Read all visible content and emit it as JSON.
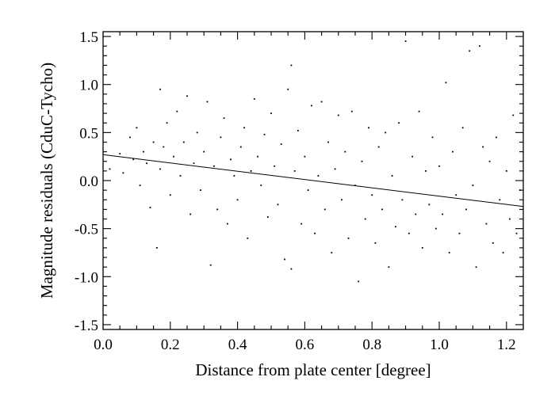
{
  "chart_data": {
    "type": "scatter",
    "xlabel": "Distance from plate center [degree]",
    "ylabel": "Magnitude residuals (CduC-Tycho)",
    "xlim": [
      0.0,
      1.25
    ],
    "ylim": [
      -1.55,
      1.55
    ],
    "x_ticks": [
      0.0,
      0.2,
      0.4,
      0.6,
      0.8,
      1.0,
      1.2
    ],
    "x_tick_labels": [
      "0.0",
      "0.2",
      "0.4",
      "0.6",
      "0.8",
      "1.0",
      "1.2"
    ],
    "y_ticks": [
      -1.5,
      -1.0,
      -0.5,
      0.0,
      0.5,
      1.0,
      1.5
    ],
    "y_tick_labels": [
      "-1.5",
      "-1.0",
      "-0.5",
      "0.0",
      "0.5",
      "1.0",
      "1.5"
    ],
    "grid": false,
    "legend": "none",
    "fit_line": {
      "x": [
        0.0,
        1.25
      ],
      "y": [
        0.27,
        -0.27
      ]
    },
    "series": [
      {
        "points": [
          [
            0.02,
            0.12
          ],
          [
            0.05,
            0.28
          ],
          [
            0.06,
            0.08
          ],
          [
            0.08,
            0.45
          ],
          [
            0.09,
            0.22
          ],
          [
            0.1,
            0.55
          ],
          [
            0.11,
            -0.05
          ],
          [
            0.12,
            0.3
          ],
          [
            0.13,
            0.18
          ],
          [
            0.14,
            -0.28
          ],
          [
            0.15,
            0.4
          ],
          [
            0.16,
            -0.7
          ],
          [
            0.17,
            0.95
          ],
          [
            0.17,
            0.12
          ],
          [
            0.18,
            0.35
          ],
          [
            0.19,
            0.6
          ],
          [
            0.2,
            -0.15
          ],
          [
            0.21,
            0.25
          ],
          [
            0.22,
            0.72
          ],
          [
            0.23,
            0.05
          ],
          [
            0.24,
            0.4
          ],
          [
            0.25,
            0.88
          ],
          [
            0.26,
            -0.35
          ],
          [
            0.27,
            0.18
          ],
          [
            0.28,
            0.5
          ],
          [
            0.29,
            -0.1
          ],
          [
            0.3,
            0.3
          ],
          [
            0.31,
            0.82
          ],
          [
            0.32,
            -0.88
          ],
          [
            0.33,
            0.15
          ],
          [
            0.34,
            -0.3
          ],
          [
            0.35,
            0.45
          ],
          [
            0.36,
            0.65
          ],
          [
            0.37,
            -0.45
          ],
          [
            0.38,
            0.22
          ],
          [
            0.39,
            0.05
          ],
          [
            0.4,
            -0.2
          ],
          [
            0.41,
            0.35
          ],
          [
            0.42,
            0.55
          ],
          [
            0.43,
            -0.6
          ],
          [
            0.44,
            0.1
          ],
          [
            0.45,
            0.85
          ],
          [
            0.46,
            0.25
          ],
          [
            0.47,
            -0.05
          ],
          [
            0.48,
            0.48
          ],
          [
            0.49,
            -0.38
          ],
          [
            0.5,
            0.7
          ],
          [
            0.51,
            0.15
          ],
          [
            0.52,
            -0.25
          ],
          [
            0.53,
            0.38
          ],
          [
            0.54,
            -0.82
          ],
          [
            0.55,
            0.95
          ],
          [
            0.56,
            1.2
          ],
          [
            0.56,
            -0.92
          ],
          [
            0.57,
            0.1
          ],
          [
            0.58,
            0.52
          ],
          [
            0.59,
            -0.45
          ],
          [
            0.6,
            0.25
          ],
          [
            0.61,
            -0.1
          ],
          [
            0.62,
            0.78
          ],
          [
            0.63,
            -0.55
          ],
          [
            0.64,
            0.05
          ],
          [
            0.65,
            0.82
          ],
          [
            0.66,
            -0.3
          ],
          [
            0.67,
            0.4
          ],
          [
            0.68,
            -0.75
          ],
          [
            0.69,
            0.12
          ],
          [
            0.7,
            0.68
          ],
          [
            0.71,
            -0.2
          ],
          [
            0.72,
            0.3
          ],
          [
            0.73,
            -0.6
          ],
          [
            0.74,
            0.72
          ],
          [
            0.75,
            -0.05
          ],
          [
            0.76,
            -1.05
          ],
          [
            0.77,
            0.2
          ],
          [
            0.78,
            -0.4
          ],
          [
            0.79,
            0.55
          ],
          [
            0.8,
            -0.15
          ],
          [
            0.81,
            -0.65
          ],
          [
            0.82,
            0.35
          ],
          [
            0.83,
            -0.3
          ],
          [
            0.84,
            0.5
          ],
          [
            0.85,
            -0.9
          ],
          [
            0.86,
            0.05
          ],
          [
            0.87,
            -0.48
          ],
          [
            0.88,
            0.6
          ],
          [
            0.89,
            -0.2
          ],
          [
            0.9,
            1.45
          ],
          [
            0.91,
            -0.55
          ],
          [
            0.92,
            0.25
          ],
          [
            0.93,
            -0.35
          ],
          [
            0.94,
            0.72
          ],
          [
            0.95,
            -0.7
          ],
          [
            0.96,
            0.1
          ],
          [
            0.97,
            -0.25
          ],
          [
            0.98,
            0.45
          ],
          [
            0.99,
            -0.5
          ],
          [
            1.0,
            0.15
          ],
          [
            1.01,
            -0.35
          ],
          [
            1.02,
            1.02
          ],
          [
            1.03,
            -0.75
          ],
          [
            1.04,
            0.3
          ],
          [
            1.05,
            -0.15
          ],
          [
            1.06,
            -0.55
          ],
          [
            1.07,
            0.55
          ],
          [
            1.08,
            -0.3
          ],
          [
            1.09,
            1.35
          ],
          [
            1.1,
            -0.05
          ],
          [
            1.11,
            -0.9
          ],
          [
            1.12,
            1.4
          ],
          [
            1.13,
            0.35
          ],
          [
            1.14,
            -0.45
          ],
          [
            1.15,
            0.2
          ],
          [
            1.16,
            -0.65
          ],
          [
            1.17,
            0.45
          ],
          [
            1.18,
            -0.2
          ],
          [
            1.19,
            -0.75
          ],
          [
            1.2,
            0.1
          ],
          [
            1.21,
            -0.4
          ],
          [
            1.22,
            0.68
          ],
          [
            1.23,
            -0.55
          ],
          [
            1.24,
            -0.1
          ]
        ]
      }
    ]
  }
}
